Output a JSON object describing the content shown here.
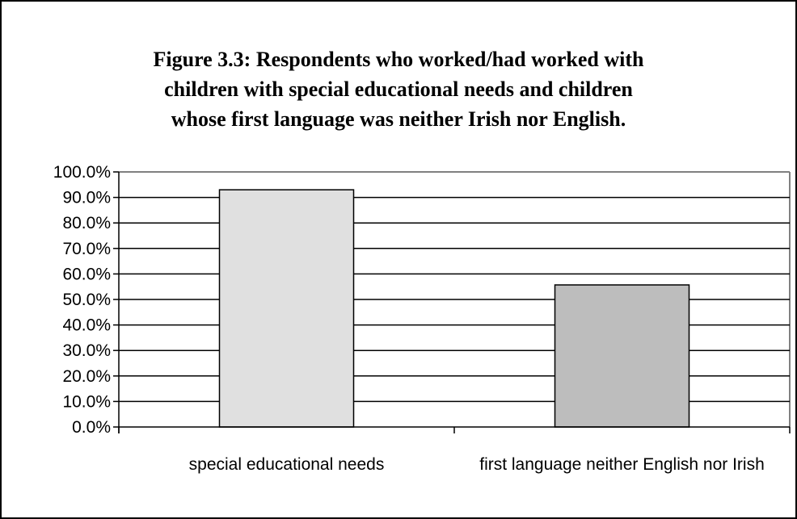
{
  "chart_data": {
    "type": "bar",
    "title_lines": [
      "Figure 3.3: Respondents who worked/had worked with",
      "children with special educational needs and children",
      "whose first language was neither Irish nor English."
    ],
    "categories": [
      "special educational needs",
      "first language neither English nor Irish"
    ],
    "values": [
      93.0,
      55.7
    ],
    "bar_colors": [
      "#e0e0e0",
      "#bdbdbd"
    ],
    "ylim": [
      0,
      100
    ],
    "ystep": 10,
    "ytick_labels": [
      "0.0%",
      "10.0%",
      "20.0%",
      "30.0%",
      "40.0%",
      "50.0%",
      "60.0%",
      "70.0%",
      "80.0%",
      "90.0%",
      "100.0%"
    ],
    "grid": true,
    "legend": "none"
  }
}
